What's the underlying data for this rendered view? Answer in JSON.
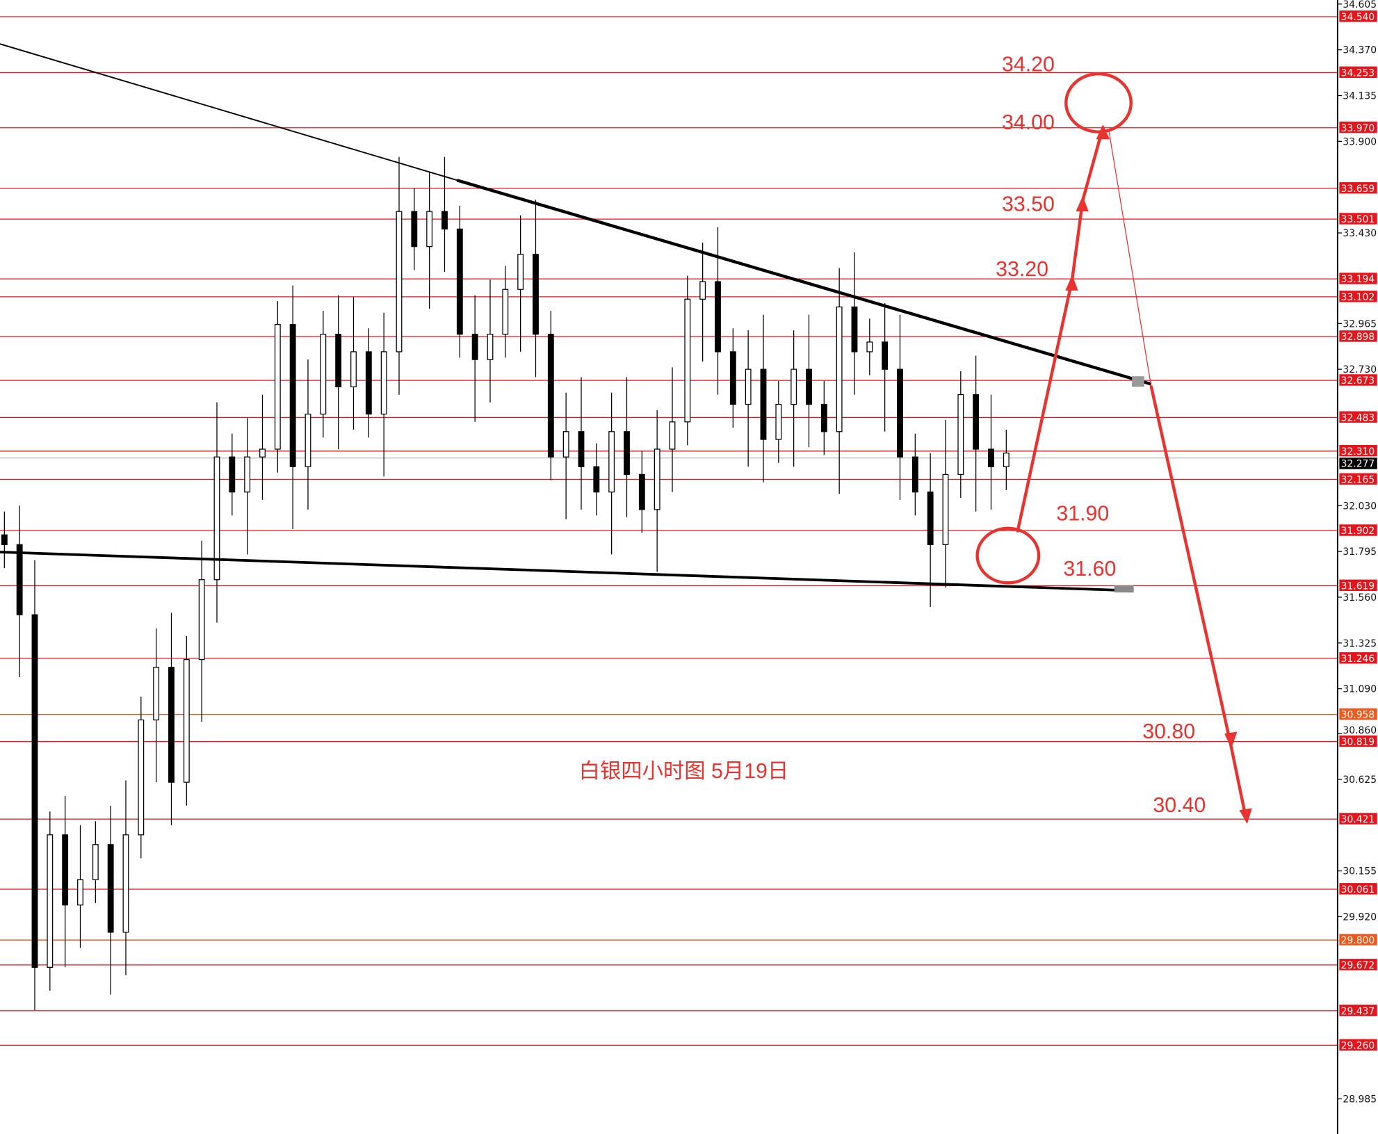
{
  "chart_data": {
    "type": "candlestick",
    "title": "白银四小时图  5月19日",
    "ylim": [
      28.9,
      34.62
    ],
    "axis_ticks": [
      "34.605",
      "34.370",
      "34.135",
      "33.900",
      "33.430",
      "32.965",
      "32.730",
      "32.030",
      "31.795",
      "31.560",
      "31.325",
      "31.090",
      "30.860",
      "30.625",
      "30.155",
      "29.920",
      "28.985"
    ],
    "current_price": "32.277",
    "level_lines": [
      {
        "value": "34.540",
        "color": "#e8141c"
      },
      {
        "value": "34.253",
        "color": "#e8141c"
      },
      {
        "value": "33.970",
        "color": "#e8141c"
      },
      {
        "value": "33.659",
        "color": "#e8141c"
      },
      {
        "value": "33.501",
        "color": "#e8141c"
      },
      {
        "value": "33.194",
        "color": "#e8141c"
      },
      {
        "value": "33.102",
        "color": "#e8141c"
      },
      {
        "value": "32.898",
        "color": "#e8141c"
      },
      {
        "value": "32.673",
        "color": "#e8141c"
      },
      {
        "value": "32.483",
        "color": "#e8141c"
      },
      {
        "value": "32.310",
        "color": "#e8141c"
      },
      {
        "value": "32.165",
        "color": "#e8141c"
      },
      {
        "value": "31.902",
        "color": "#e8141c"
      },
      {
        "value": "31.619",
        "color": "#e8141c"
      },
      {
        "value": "31.246",
        "color": "#e8141c"
      },
      {
        "value": "30.958",
        "color": "#f0581c"
      },
      {
        "value": "30.819",
        "color": "#e8141c"
      },
      {
        "value": "30.421",
        "color": "#e8141c"
      },
      {
        "value": "30.061",
        "color": "#e8141c"
      },
      {
        "value": "29.800",
        "color": "#f0581c"
      },
      {
        "value": "29.672",
        "color": "#e8141c"
      },
      {
        "value": "29.437",
        "color": "#e8141c"
      },
      {
        "value": "29.260",
        "color": "#e8141c"
      }
    ],
    "closes": [
      31.83,
      31.47,
      29.66,
      30.34,
      29.98,
      30.11,
      30.29,
      29.84,
      30.34,
      30.93,
      31.2,
      30.61,
      31.24,
      31.65,
      32.28,
      32.1,
      32.28,
      32.32,
      32.96,
      32.23,
      32.5,
      32.91,
      32.64,
      32.82,
      32.5,
      32.82,
      33.54,
      33.36,
      33.54,
      33.45,
      32.91,
      32.78,
      32.91,
      33.14,
      33.32,
      32.91,
      32.28,
      32.41,
      32.23,
      32.1,
      32.41,
      32.19,
      32.01,
      32.32,
      32.46,
      33.09,
      33.18,
      32.82,
      32.55,
      32.73,
      32.37,
      32.55,
      32.73,
      32.55,
      32.41,
      33.05,
      32.82,
      32.87,
      32.73,
      32.28,
      32.1,
      31.83,
      32.19,
      32.6,
      32.32,
      32.23,
      32.3
    ],
    "annotations": [
      "34.20",
      "34.00",
      "33.50",
      "33.20",
      "31.90",
      "31.60",
      "30.80",
      "30.40"
    ],
    "annotation_color": "#e8332e"
  }
}
